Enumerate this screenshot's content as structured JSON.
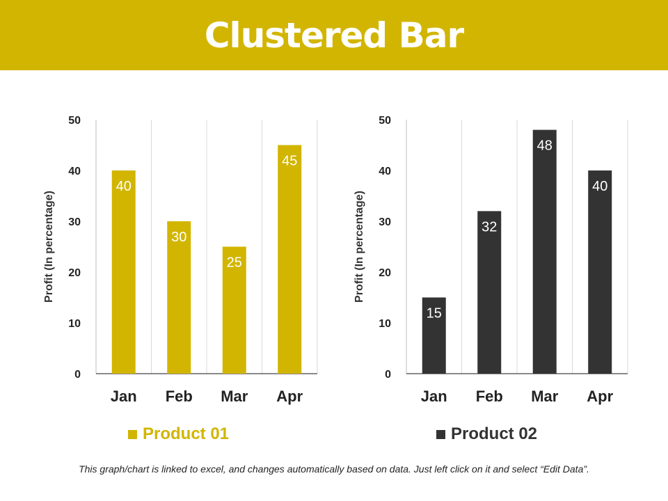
{
  "header": {
    "title": "Clustered Bar"
  },
  "chart_data": [
    {
      "type": "bar",
      "categories": [
        "Jan",
        "Feb",
        "Mar",
        "Apr"
      ],
      "series": [
        {
          "name": "Product 01",
          "values": [
            40,
            30,
            25,
            45
          ],
          "color": "#D2B500"
        }
      ],
      "ylabel": "Profit  (In percentage)",
      "ylim": [
        0,
        50
      ],
      "yticks": [
        0,
        10,
        20,
        30,
        40,
        50
      ],
      "legend": "bottom",
      "grid": "vertical"
    },
    {
      "type": "bar",
      "categories": [
        "Jan",
        "Feb",
        "Mar",
        "Apr"
      ],
      "series": [
        {
          "name": "Product 02",
          "values": [
            15,
            32,
            48,
            40
          ],
          "color": "#333333"
        }
      ],
      "ylabel": "Profit  (In percentage)",
      "ylim": [
        0,
        50
      ],
      "yticks": [
        0,
        10,
        20,
        30,
        40,
        50
      ],
      "legend": "bottom",
      "grid": "vertical"
    }
  ],
  "legend": {
    "product1": {
      "label": "Product 01",
      "color": "#D2B500"
    },
    "product2": {
      "label": "Product 02",
      "color": "#333333"
    }
  },
  "footnote": "This graph/chart is linked to excel, and changes automatically based on data. Just left click on it and select “Edit Data”."
}
